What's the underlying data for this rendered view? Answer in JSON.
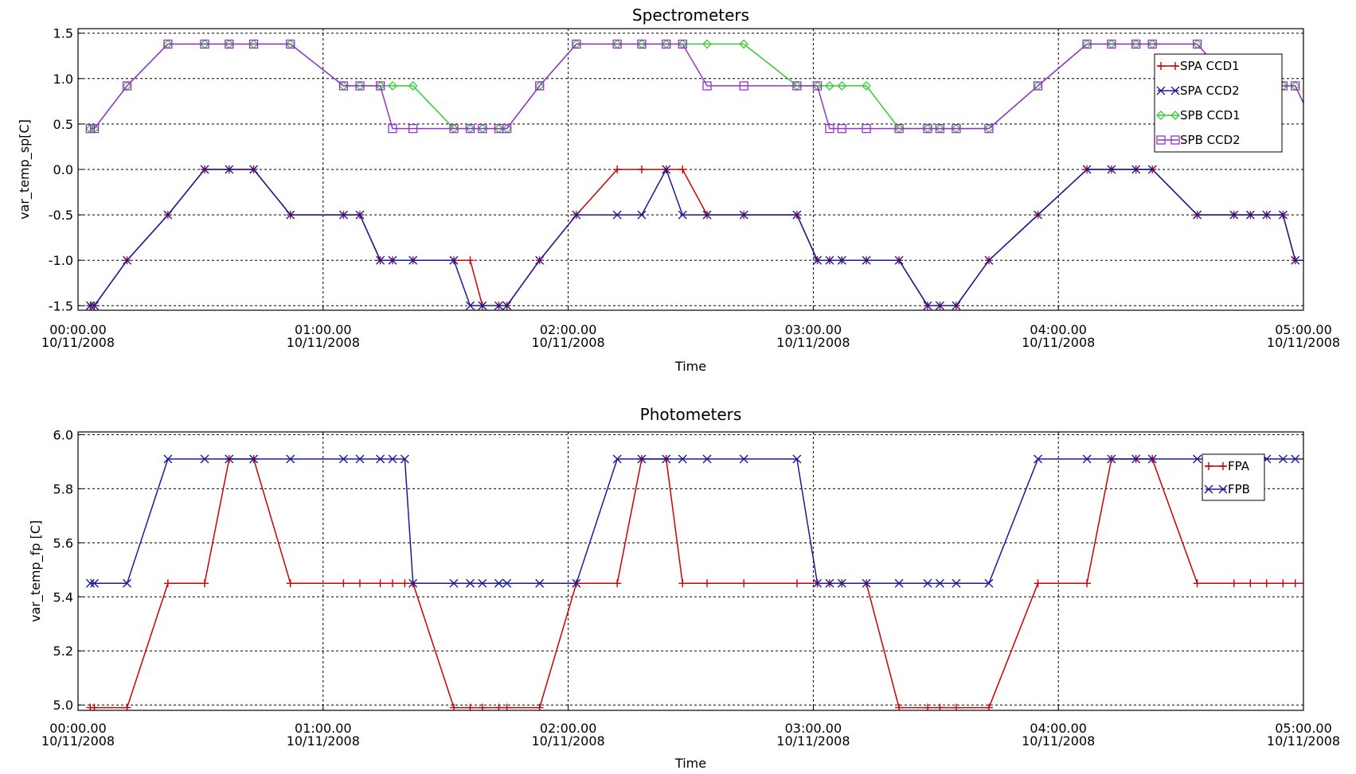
{
  "chart_data": [
    {
      "type": "line",
      "title": "Spectrometers",
      "xlabel": "Time",
      "ylabel": "var_temp_sp[C]",
      "xlim": [
        0,
        300
      ],
      "ylim": [
        -1.55,
        1.55
      ],
      "xticks": [
        {
          "value": 0,
          "line1": "00:00.00",
          "line2": "10/11/2008"
        },
        {
          "value": 60,
          "line1": "01:00.00",
          "line2": "10/11/2008"
        },
        {
          "value": 120,
          "line1": "02:00.00",
          "line2": "10/11/2008"
        },
        {
          "value": 180,
          "line1": "03:00.00",
          "line2": "10/11/2008"
        },
        {
          "value": 240,
          "line1": "04:00.00",
          "line2": "10/11/2008"
        },
        {
          "value": 300,
          "line1": "05:00.00",
          "line2": "10/11/2008"
        }
      ],
      "yticks": [
        {
          "value": 1.5,
          "label": "1.5"
        },
        {
          "value": 1.0,
          "label": "1.0"
        },
        {
          "value": 0.5,
          "label": "0.5"
        },
        {
          "value": 0.0,
          "label": "0.0"
        },
        {
          "value": -0.5,
          "label": "-0.5"
        },
        {
          "value": -1.0,
          "label": "-1.0"
        },
        {
          "value": -1.5,
          "label": "-1.5"
        }
      ],
      "grid": true,
      "legend_position": "top-right",
      "series": [
        {
          "name": "SPA CCD1",
          "color": "#cc0000",
          "marker": "plus",
          "x": [
            3,
            4,
            12,
            22,
            31,
            37,
            43,
            52,
            65,
            69,
            74,
            77,
            82,
            92,
            96,
            99,
            103,
            105,
            113,
            122,
            132,
            138,
            144,
            148,
            154,
            163,
            176,
            181,
            184,
            187,
            193,
            201,
            208,
            211,
            215,
            223,
            235,
            247,
            253,
            259,
            263,
            274,
            283,
            287,
            291,
            295,
            298,
            303,
            313,
            316
          ],
          "y": [
            -1.5,
            -1.5,
            -1.0,
            -0.5,
            0.0,
            0.0,
            0.0,
            -0.5,
            -0.5,
            -0.5,
            -1.0,
            -1.0,
            -1.0,
            -1.0,
            -1.0,
            -1.5,
            -1.5,
            -1.5,
            -1.0,
            -0.5,
            0.0,
            0.0,
            0.0,
            0.0,
            -0.5,
            -0.5,
            -0.5,
            -1.0,
            -1.0,
            -1.0,
            -1.0,
            -1.0,
            -1.5,
            -1.5,
            -1.5,
            -1.0,
            -0.5,
            0.0,
            0.0,
            0.0,
            0.0,
            -0.5,
            -0.5,
            -0.5,
            -0.5,
            -0.5,
            -1.0,
            -1.0,
            -1.0,
            -1.0
          ]
        },
        {
          "name": "SPA CCD2",
          "color": "#1a1a99",
          "marker": "x",
          "x": [
            3,
            4,
            12,
            22,
            31,
            37,
            43,
            52,
            65,
            69,
            74,
            77,
            82,
            92,
            96,
            99,
            103,
            105,
            113,
            122,
            132,
            138,
            144,
            148,
            154,
            163,
            176,
            181,
            184,
            187,
            193,
            201,
            208,
            211,
            215,
            223,
            235,
            247,
            253,
            259,
            263,
            274,
            283,
            287,
            291,
            295,
            298,
            303,
            313,
            316
          ],
          "y": [
            -1.5,
            -1.5,
            -1.0,
            -0.5,
            0.0,
            0.0,
            0.0,
            -0.5,
            -0.5,
            -0.5,
            -1.0,
            -1.0,
            -1.0,
            -1.0,
            -1.5,
            -1.5,
            -1.5,
            -1.5,
            -1.0,
            -0.5,
            -0.5,
            -0.5,
            0.0,
            -0.5,
            -0.5,
            -0.5,
            -0.5,
            -1.0,
            -1.0,
            -1.0,
            -1.0,
            -1.0,
            -1.5,
            -1.5,
            -1.5,
            -1.0,
            -0.5,
            0.0,
            0.0,
            0.0,
            0.0,
            -0.5,
            -0.5,
            -0.5,
            -0.5,
            -0.5,
            -1.0,
            -1.0,
            -1.0,
            -1.0
          ]
        },
        {
          "name": "SPB CCD1",
          "color": "#33cc33",
          "marker": "diamond",
          "x": [
            3,
            4,
            12,
            22,
            31,
            37,
            43,
            52,
            65,
            69,
            74,
            77,
            82,
            92,
            96,
            99,
            103,
            105,
            113,
            122,
            132,
            138,
            144,
            148,
            154,
            163,
            176,
            181,
            184,
            187,
            193,
            201,
            208,
            211,
            215,
            223,
            235,
            247,
            253,
            259,
            263,
            274,
            283,
            287,
            291,
            295,
            298,
            303,
            313,
            316
          ],
          "y": [
            0.45,
            0.45,
            0.92,
            1.38,
            1.38,
            1.38,
            1.38,
            1.38,
            0.92,
            0.92,
            0.92,
            0.92,
            0.92,
            0.45,
            0.45,
            0.45,
            0.45,
            0.45,
            0.92,
            1.38,
            1.38,
            1.38,
            1.38,
            1.38,
            1.38,
            1.38,
            0.92,
            0.92,
            0.92,
            0.92,
            0.92,
            0.45,
            0.45,
            0.45,
            0.45,
            0.45,
            0.92,
            1.38,
            1.38,
            1.38,
            1.38,
            1.38,
            0.92,
            0.92,
            0.92,
            0.92,
            0.92,
            0.45,
            0.45,
            0.45
          ]
        },
        {
          "name": "SPB CCD2",
          "color": "#9933cc",
          "marker": "square",
          "x": [
            3,
            4,
            12,
            22,
            31,
            37,
            43,
            52,
            65,
            69,
            74,
            77,
            82,
            92,
            96,
            99,
            103,
            105,
            113,
            122,
            132,
            138,
            144,
            148,
            154,
            163,
            176,
            181,
            184,
            187,
            193,
            201,
            208,
            211,
            215,
            223,
            235,
            247,
            253,
            259,
            263,
            274,
            283,
            287,
            291,
            295,
            298,
            303,
            313,
            316
          ],
          "y": [
            0.45,
            0.45,
            0.92,
            1.38,
            1.38,
            1.38,
            1.38,
            1.38,
            0.92,
            0.92,
            0.92,
            0.45,
            0.45,
            0.45,
            0.45,
            0.45,
            0.45,
            0.45,
            0.92,
            1.38,
            1.38,
            1.38,
            1.38,
            1.38,
            0.92,
            0.92,
            0.92,
            0.92,
            0.45,
            0.45,
            0.45,
            0.45,
            0.45,
            0.45,
            0.45,
            0.45,
            0.92,
            1.38,
            1.38,
            1.38,
            1.38,
            1.38,
            0.92,
            0.92,
            0.92,
            0.92,
            0.92,
            0.45,
            0.45,
            0.45
          ]
        }
      ]
    },
    {
      "type": "line",
      "title": "Photometers",
      "xlabel": "Time",
      "ylabel": "var_temp_fp [C]",
      "xlim": [
        0,
        300
      ],
      "ylim": [
        4.98,
        6.01
      ],
      "xticks": [
        {
          "value": 0,
          "line1": "00:00.00",
          "line2": "10/11/2008"
        },
        {
          "value": 60,
          "line1": "01:00.00",
          "line2": "10/11/2008"
        },
        {
          "value": 120,
          "line1": "02:00.00",
          "line2": "10/11/2008"
        },
        {
          "value": 180,
          "line1": "03:00.00",
          "line2": "10/11/2008"
        },
        {
          "value": 240,
          "line1": "04:00.00",
          "line2": "10/11/2008"
        },
        {
          "value": 300,
          "line1": "05:00.00",
          "line2": "10/11/2008"
        }
      ],
      "yticks": [
        {
          "value": 6.0,
          "label": "6.0"
        },
        {
          "value": 5.8,
          "label": "5.8"
        },
        {
          "value": 5.6,
          "label": "5.6"
        },
        {
          "value": 5.4,
          "label": "5.4"
        },
        {
          "value": 5.2,
          "label": "5.2"
        },
        {
          "value": 5.0,
          "label": "5.0"
        }
      ],
      "grid": true,
      "legend_position": "top-right",
      "series": [
        {
          "name": "FPA",
          "color": "#cc0000",
          "marker": "plus",
          "x": [
            3,
            4,
            12,
            22,
            31,
            37,
            43,
            52,
            65,
            69,
            74,
            77,
            80,
            82,
            92,
            96,
            99,
            103,
            105,
            113,
            122,
            132,
            138,
            144,
            148,
            154,
            163,
            176,
            181,
            184,
            187,
            193,
            201,
            208,
            211,
            215,
            223,
            235,
            247,
            253,
            259,
            263,
            274,
            283,
            287,
            291,
            295,
            298,
            303,
            313,
            316
          ],
          "y": [
            4.99,
            4.99,
            4.99,
            5.45,
            5.45,
            5.91,
            5.91,
            5.45,
            5.45,
            5.45,
            5.45,
            5.45,
            5.45,
            5.45,
            4.99,
            4.99,
            4.99,
            4.99,
            4.99,
            4.99,
            5.45,
            5.45,
            5.91,
            5.91,
            5.45,
            5.45,
            5.45,
            5.45,
            5.45,
            5.45,
            5.45,
            5.45,
            4.99,
            4.99,
            4.99,
            4.99,
            4.99,
            5.45,
            5.45,
            5.91,
            5.91,
            5.91,
            5.45,
            5.45,
            5.45,
            5.45,
            5.45,
            5.45,
            5.45,
            5.45,
            5.45
          ]
        },
        {
          "name": "FPB",
          "color": "#1a1a99",
          "marker": "x",
          "x": [
            3,
            4,
            12,
            22,
            31,
            37,
            43,
            52,
            65,
            69,
            74,
            77,
            80,
            82,
            92,
            96,
            99,
            103,
            105,
            113,
            122,
            132,
            138,
            144,
            148,
            154,
            163,
            176,
            181,
            184,
            187,
            193,
            201,
            208,
            211,
            215,
            223,
            235,
            247,
            253,
            259,
            263,
            274,
            283,
            287,
            291,
            295,
            298,
            303,
            313,
            316
          ],
          "y": [
            5.45,
            5.45,
            5.45,
            5.91,
            5.91,
            5.91,
            5.91,
            5.91,
            5.91,
            5.91,
            5.91,
            5.91,
            5.91,
            5.45,
            5.45,
            5.45,
            5.45,
            5.45,
            5.45,
            5.45,
            5.45,
            5.91,
            5.91,
            5.91,
            5.91,
            5.91,
            5.91,
            5.91,
            5.45,
            5.45,
            5.45,
            5.45,
            5.45,
            5.45,
            5.45,
            5.45,
            5.45,
            5.91,
            5.91,
            5.91,
            5.91,
            5.91,
            5.91,
            5.91,
            5.91,
            5.91,
            5.91,
            5.91,
            5.91,
            5.45,
            5.45
          ]
        }
      ]
    }
  ]
}
